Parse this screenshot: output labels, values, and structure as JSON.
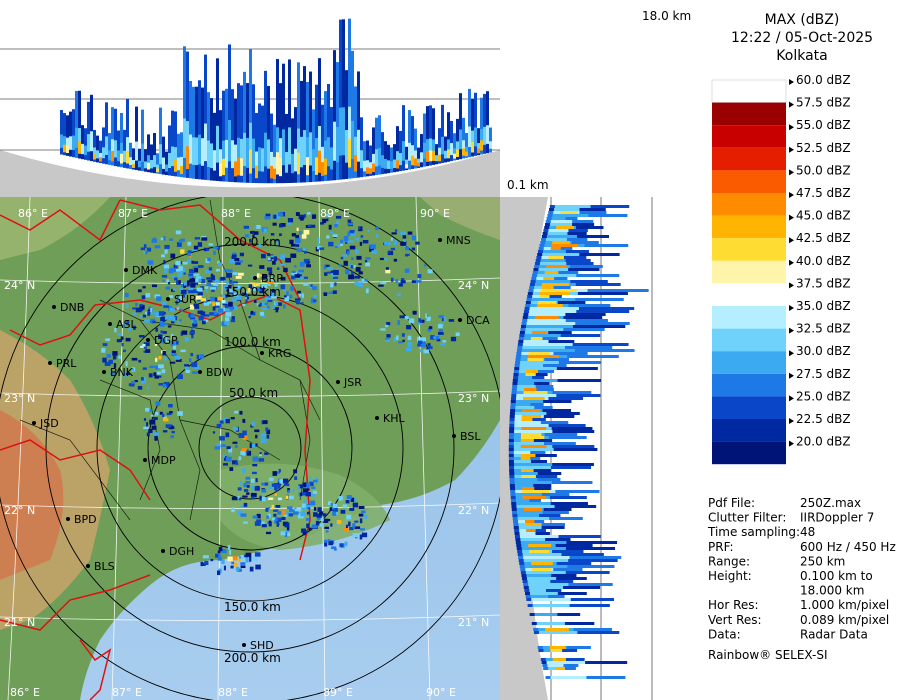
{
  "product": {
    "title": "MAX (dBZ)",
    "datetime": "12:22 / 05-Oct-2025",
    "station": "Kolkata"
  },
  "height_labels": {
    "top": "18.0 km",
    "bottom": "0.1 km"
  },
  "color_scale": [
    {
      "label": "60.0 dBZ",
      "color": "#ffffff"
    },
    {
      "label": "57.5 dBZ",
      "color": "#9a0000"
    },
    {
      "label": "55.0 dBZ",
      "color": "#c80000"
    },
    {
      "label": "52.5 dBZ",
      "color": "#e61e00"
    },
    {
      "label": "50.0 dBZ",
      "color": "#fa5a00"
    },
    {
      "label": "47.5 dBZ",
      "color": "#ff8c00"
    },
    {
      "label": "45.0 dBZ",
      "color": "#ffb400"
    },
    {
      "label": "42.5 dBZ",
      "color": "#ffdc32"
    },
    {
      "label": "40.0 dBZ",
      "color": "#fff5aa"
    },
    {
      "label": "37.5 dBZ",
      "color": "#ffffff"
    },
    {
      "label": "35.0 dBZ",
      "color": "#b4eeff"
    },
    {
      "label": "32.5 dBZ",
      "color": "#6ed2fa"
    },
    {
      "label": "30.0 dBZ",
      "color": "#3caaf0"
    },
    {
      "label": "27.5 dBZ",
      "color": "#1e78e6"
    },
    {
      "label": "25.0 dBZ",
      "color": "#0a46c8"
    },
    {
      "label": "22.5 dBZ",
      "color": "#0028a0"
    },
    {
      "label": "20.0 dBZ",
      "color": "#001478"
    }
  ],
  "info": [
    {
      "key": "Pdf File:",
      "value": "250Z.max"
    },
    {
      "key": "Clutter Filter:",
      "value": "IIRDoppler 7"
    },
    {
      "key": "Time sampling:",
      "value": "48"
    },
    {
      "key": "PRF:",
      "value": "600 Hz / 450 Hz"
    },
    {
      "key": "Range:",
      "value": "250 km"
    },
    {
      "key": "Height:",
      "value": "0.100 km to"
    },
    {
      "key": "",
      "value": "18.000 km"
    },
    {
      "key": "Hor Res:",
      "value": "1.000 km/pixel"
    },
    {
      "key": "Vert Res:",
      "value": "0.089 km/pixel"
    },
    {
      "key": "Data:",
      "value": "Radar Data"
    }
  ],
  "footer": "Rainbow® SELEX-SI",
  "map": {
    "lon_labels": [
      "86° E",
      "87° E",
      "88° E",
      "89° E",
      "90° E"
    ],
    "lat_labels": [
      "24° N",
      "23° N",
      "22° N",
      "21° N"
    ],
    "range_rings": [
      "50.0 km",
      "100.0 km",
      "150.0 km",
      "200.0 km"
    ],
    "cities": [
      "MNS",
      "DMK",
      "BRP",
      "DNB",
      "SUR",
      "ASL",
      "DCA",
      "DGP",
      "KRG",
      "PRL",
      "BNK",
      "BDW",
      "JSR",
      "JSD",
      "KHL",
      "BSL",
      "MDP",
      "BPD",
      "DGH",
      "BLS",
      "SHD"
    ]
  }
}
